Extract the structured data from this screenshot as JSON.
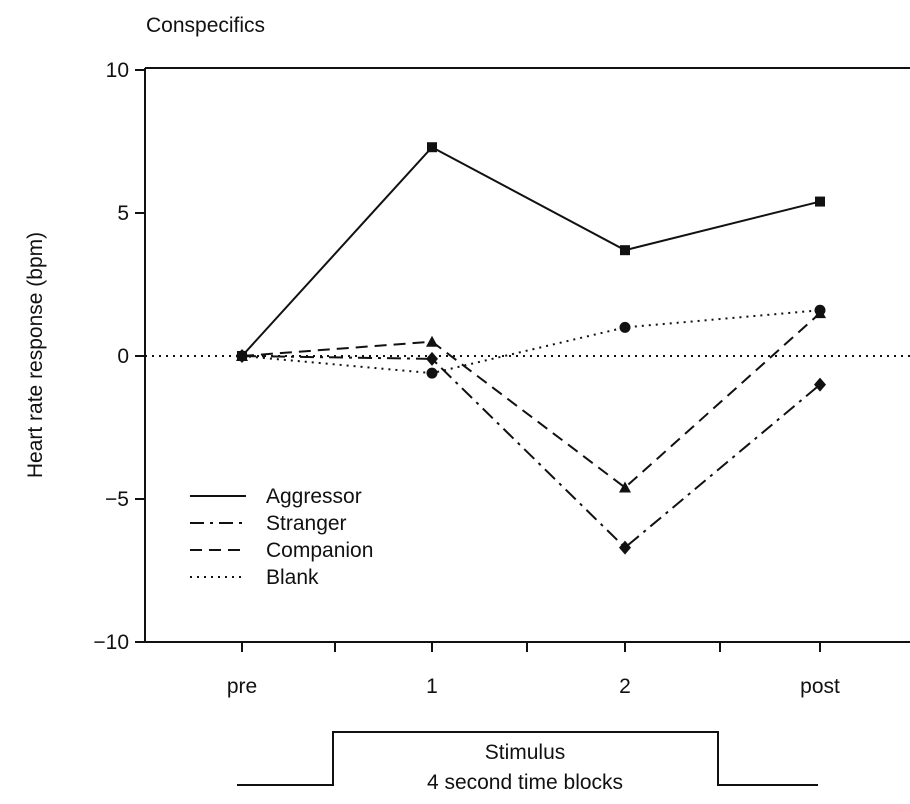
{
  "chart_data": {
    "type": "line",
    "title": "Conspecifics",
    "xlabel": "",
    "ylabel": "Heart rate response (bpm)",
    "categories": [
      "pre",
      "1",
      "2",
      "post"
    ],
    "ylim": [
      -10,
      10
    ],
    "yticks": [
      10,
      5,
      0,
      -5,
      -10
    ],
    "ytick_labels": [
      "10",
      "5",
      "0",
      "−5",
      "−10"
    ],
    "reference_line_y": 0,
    "legend_position": "bottom-left",
    "series": [
      {
        "name": "Aggressor",
        "line_style": "solid",
        "marker": "square",
        "values": [
          0,
          7.3,
          3.7,
          5.4
        ]
      },
      {
        "name": "Stranger",
        "line_style": "dashdot",
        "marker": "diamond",
        "values": [
          0,
          -0.1,
          -6.7,
          -1.0
        ]
      },
      {
        "name": "Companion",
        "line_style": "dashed",
        "marker": "triangle",
        "values": [
          0,
          0.5,
          -4.6,
          1.5
        ]
      },
      {
        "name": "Blank",
        "line_style": "dotted",
        "marker": "circle",
        "values": [
          0,
          -0.6,
          1.0,
          1.6
        ]
      }
    ],
    "stimulus": {
      "label_line1": "Stimulus",
      "label_line2": "4 second time blocks"
    }
  }
}
